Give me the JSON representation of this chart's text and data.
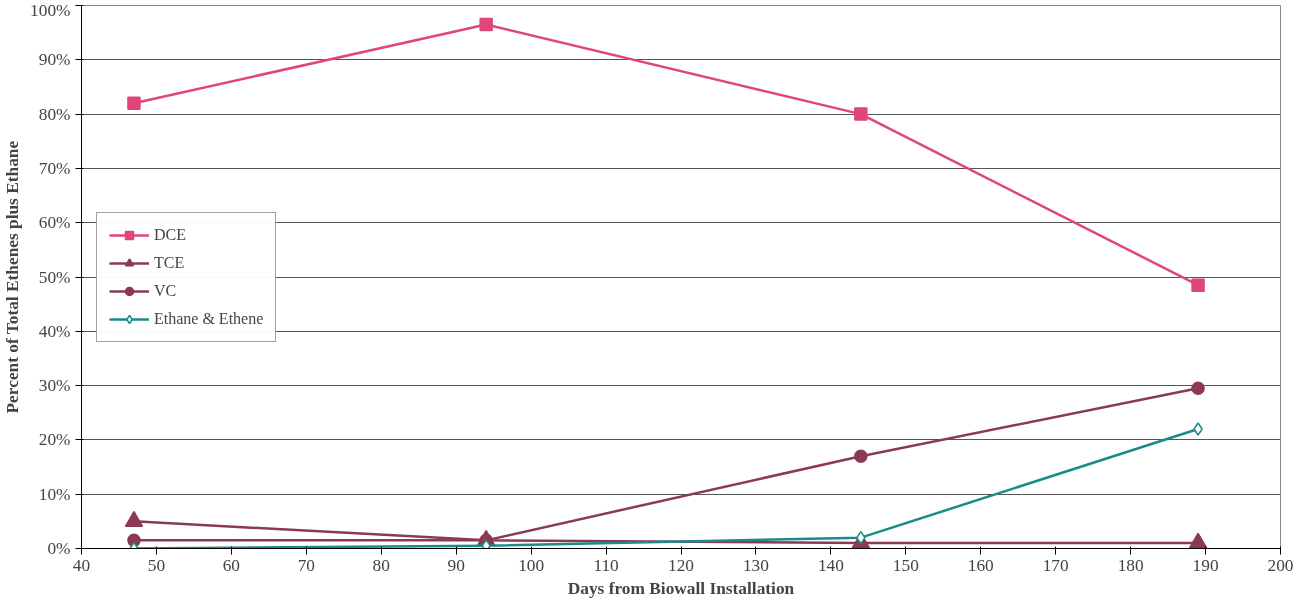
{
  "chart_data": {
    "type": "line",
    "xlabel": "Days from Biowall Installation",
    "ylabel": "Percent of Total Ethenes plus Ethane",
    "x": [
      47,
      94,
      144,
      189
    ],
    "series": [
      {
        "name": "DCE",
        "color": "#e0457b",
        "marker": "square",
        "values": [
          82,
          96.5,
          80,
          48.5
        ]
      },
      {
        "name": "TCE",
        "color": "#8b3a52",
        "marker": "triangle",
        "values": [
          5,
          1.5,
          1,
          1
        ]
      },
      {
        "name": "VC",
        "color": "#8b3a52",
        "marker": "circle",
        "values": [
          1.5,
          1.5,
          17,
          29.5
        ]
      },
      {
        "name": "Ethane & Ethene",
        "color": "#1a8a8a",
        "marker": "diamond",
        "values": [
          0,
          0.5,
          2,
          22
        ]
      }
    ],
    "xlim": [
      40,
      200
    ],
    "xticks": [
      40,
      50,
      60,
      70,
      80,
      90,
      100,
      110,
      120,
      130,
      140,
      150,
      160,
      170,
      180,
      190,
      200
    ],
    "ylim": [
      0,
      100
    ],
    "yticks": [
      {
        "value": 0,
        "label": "0%"
      },
      {
        "value": 10,
        "label": "10%"
      },
      {
        "value": 20,
        "label": "20%"
      },
      {
        "value": 30,
        "label": "30%"
      },
      {
        "value": 40,
        "label": "40%"
      },
      {
        "value": 50,
        "label": "50%"
      },
      {
        "value": 60,
        "label": "60%"
      },
      {
        "value": 70,
        "label": "70%"
      },
      {
        "value": 80,
        "label": "80%"
      },
      {
        "value": 90,
        "label": "90%"
      },
      {
        "value": 100,
        "label": "100%"
      }
    ],
    "grid": "y",
    "legend": "left",
    "line_style": "solid"
  }
}
